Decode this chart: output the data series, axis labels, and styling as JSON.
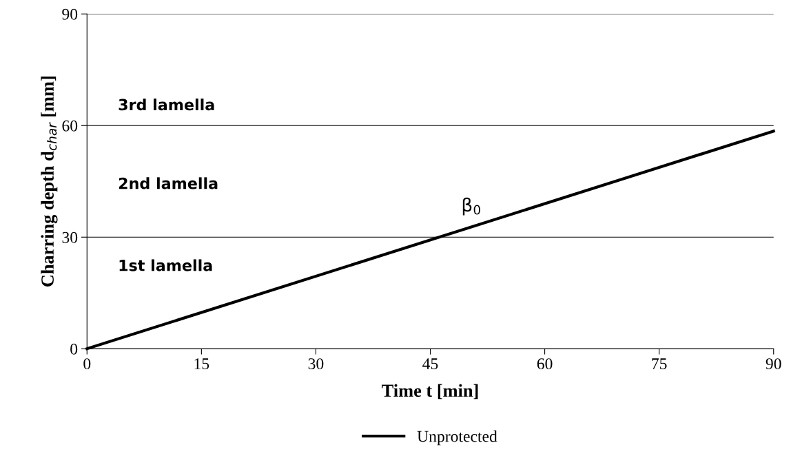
{
  "chart_data": {
    "type": "line",
    "xlabel": "Time t [min]",
    "ylabel": "Charring depth d$_{char}$ [mm]",
    "x": [
      0,
      90
    ],
    "series": [
      {
        "name": "Unprotected",
        "color": "#000000",
        "values": [
          0,
          58.5
        ]
      }
    ],
    "xlim": [
      0,
      90
    ],
    "xticks": [
      0,
      15,
      30,
      45,
      60,
      75,
      90
    ],
    "ylim": [
      0,
      90
    ],
    "yticks": [
      0,
      30,
      60,
      90
    ],
    "grid": "y",
    "legend": "bottom",
    "line_style": "solid",
    "marker": "none",
    "annotations": [
      "3rd lamella",
      "2nd lamella",
      "1st lamella",
      "β$_{0}$"
    ]
  }
}
